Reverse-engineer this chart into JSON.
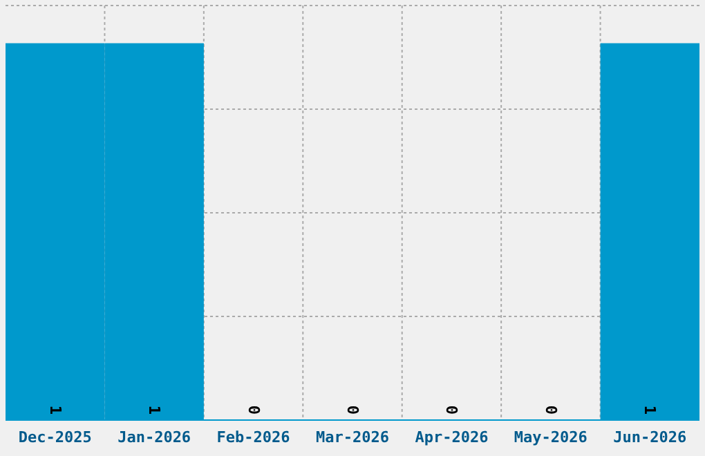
{
  "chart_data": {
    "type": "bar",
    "categories": [
      "Dec-2025",
      "Jan-2026",
      "Feb-2026",
      "Mar-2026",
      "Apr-2026",
      "May-2026",
      "Jun-2026"
    ],
    "values": [
      1,
      1,
      0,
      0,
      0,
      0,
      1
    ],
    "color": "#0099cc",
    "data_labels": true,
    "ylim": [
      0,
      1.1
    ],
    "yticks": [
      {
        "value": 0.275,
        "label": null
      },
      {
        "value": 0.55,
        "label": null
      },
      {
        "value": 0.825,
        "label": null
      },
      {
        "value": 1.1,
        "label": null
      }
    ],
    "tick_labels": "x",
    "grid": true
  }
}
